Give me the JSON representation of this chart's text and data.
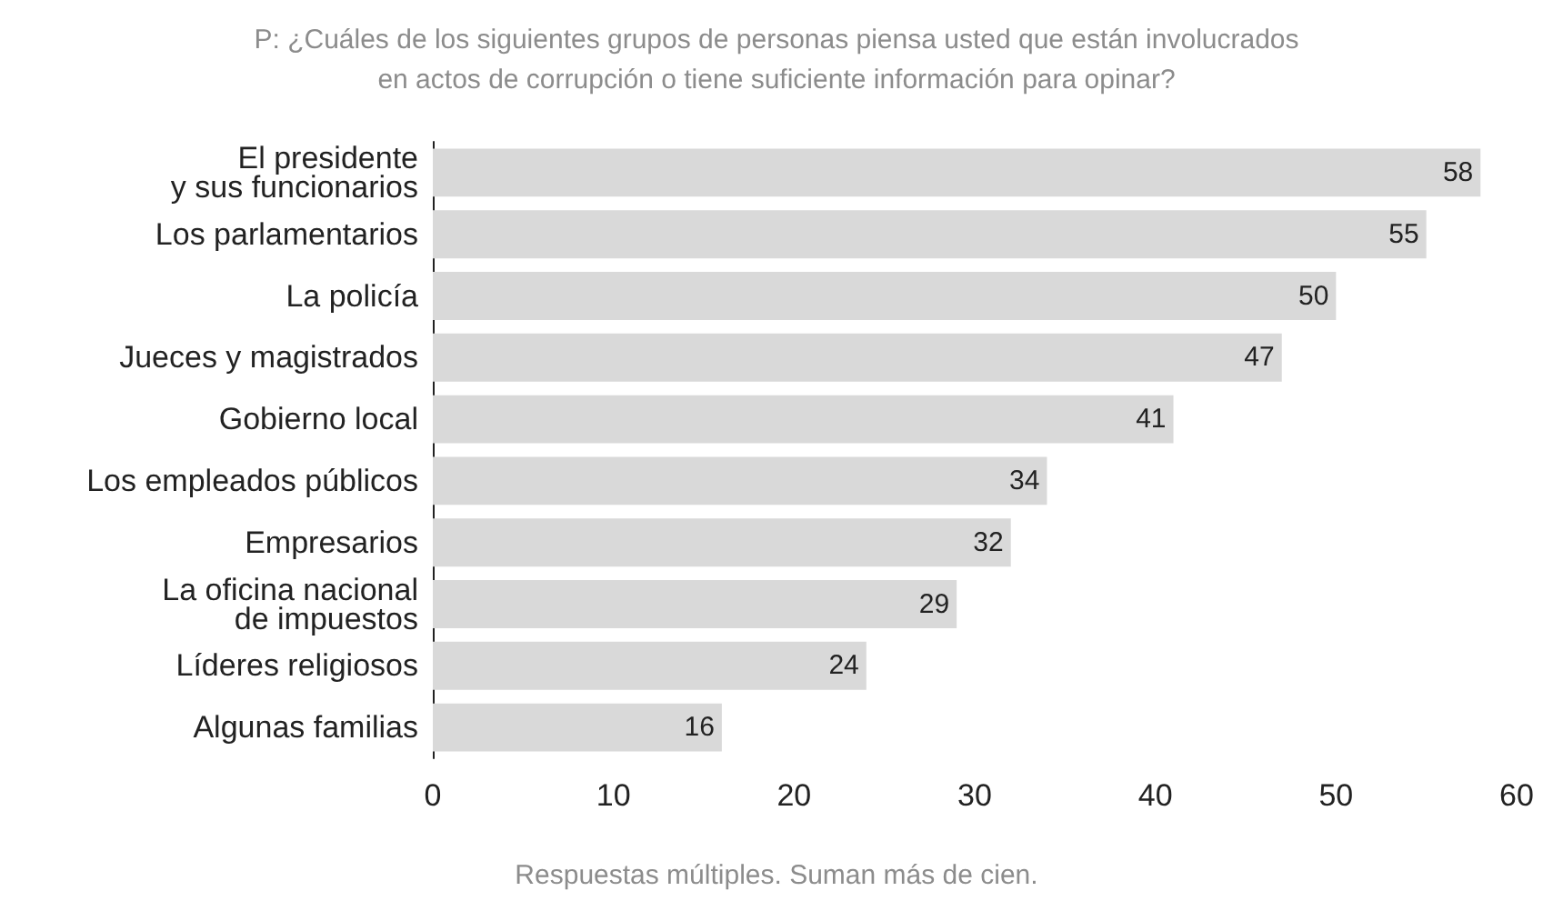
{
  "chart_data": {
    "type": "bar",
    "orientation": "horizontal",
    "title": "P: ¿Cuáles de los siguientes grupos de personas piensa usted que están involucrados\nen actos de corrupción o tiene suficiente información para opinar?",
    "categories": [
      "El presidente\ny sus funcionarios",
      "Los parlamentarios",
      "La policía",
      "Jueces y magistrados",
      "Gobierno local",
      "Los empleados públicos",
      "Empresarios",
      "La oficina nacional\nde impuestos",
      "Líderes religiosos",
      "Algunas familias"
    ],
    "values": [
      58,
      55,
      50,
      47,
      41,
      34,
      32,
      29,
      24,
      16
    ],
    "color": "#d9d9d9",
    "xlim": [
      0,
      60
    ],
    "xticks": [
      0,
      10,
      20,
      30,
      40,
      50,
      60
    ],
    "data_labels": true,
    "grid": false,
    "annotations": [
      "Respuestas múltiples. Suman más de cien."
    ]
  }
}
